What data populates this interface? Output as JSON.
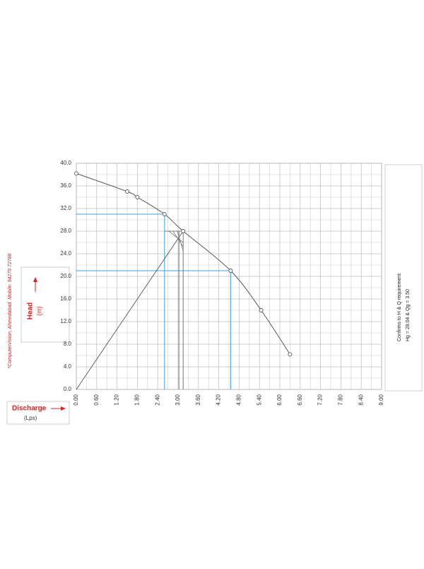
{
  "chart_data": {
    "type": "line",
    "x_label": "Discharge",
    "x_unit": "(Lps)",
    "y_label": "Head",
    "y_unit": "(m)",
    "xlim": [
      0,
      9
    ],
    "xticks": [
      {
        "value": 0,
        "label": "0.00"
      },
      {
        "value": 0.6,
        "label": "0.60"
      },
      {
        "value": 1.2,
        "label": "1.20"
      },
      {
        "value": 1.8,
        "label": "1.80"
      },
      {
        "value": 2.4,
        "label": "2.40"
      },
      {
        "value": 3,
        "label": "3.00"
      },
      {
        "value": 3.6,
        "label": "3.60"
      },
      {
        "value": 4.2,
        "label": "4.20"
      },
      {
        "value": 4.8,
        "label": "4.80"
      },
      {
        "value": 5.4,
        "label": "5.40"
      },
      {
        "value": 6,
        "label": "6.00"
      },
      {
        "value": 6.6,
        "label": "6.60"
      },
      {
        "value": 7.2,
        "label": "7.20"
      },
      {
        "value": 7.8,
        "label": "7.80"
      },
      {
        "value": 8.4,
        "label": "8.40"
      },
      {
        "value": 9,
        "label": "9.00"
      }
    ],
    "ylim": [
      0,
      40
    ],
    "yticks": [
      {
        "value": 0,
        "label": "0.0"
      },
      {
        "value": 4,
        "label": "4.0"
      },
      {
        "value": 8,
        "label": "8.0"
      },
      {
        "value": 12,
        "label": "12.0"
      },
      {
        "value": 16,
        "label": "16.0"
      },
      {
        "value": 20,
        "label": "20.0"
      },
      {
        "value": 24,
        "label": "24.0"
      },
      {
        "value": 28,
        "label": "28.0"
      },
      {
        "value": 32,
        "label": "32.0"
      },
      {
        "value": 36,
        "label": "36.0"
      },
      {
        "value": 40,
        "label": "40.0"
      }
    ],
    "grid": true,
    "series": [
      {
        "color": "#555555",
        "x": [
          0,
          1.5,
          1.8,
          2.6,
          3.15,
          4.55,
          5.45,
          6.3
        ],
        "values": [
          38.2,
          35,
          34,
          31,
          28,
          21,
          14,
          6.2
        ]
      }
    ],
    "reference_points": {
      "color": "#3aa0d8",
      "x": [
        2.6,
        4.55
      ],
      "values": [
        31,
        21
      ]
    },
    "system_curve": {
      "color": "#555555",
      "x": [
        0,
        3.15
      ],
      "values": [
        0,
        28
      ]
    },
    "annotation": "*ComputerVision, Ahmedabad. Mobile: 94270 72786",
    "requirement": [
      "Confirms to H & Q requirement",
      "Hg = 28.04 & Qg = 3.50"
    ]
  }
}
